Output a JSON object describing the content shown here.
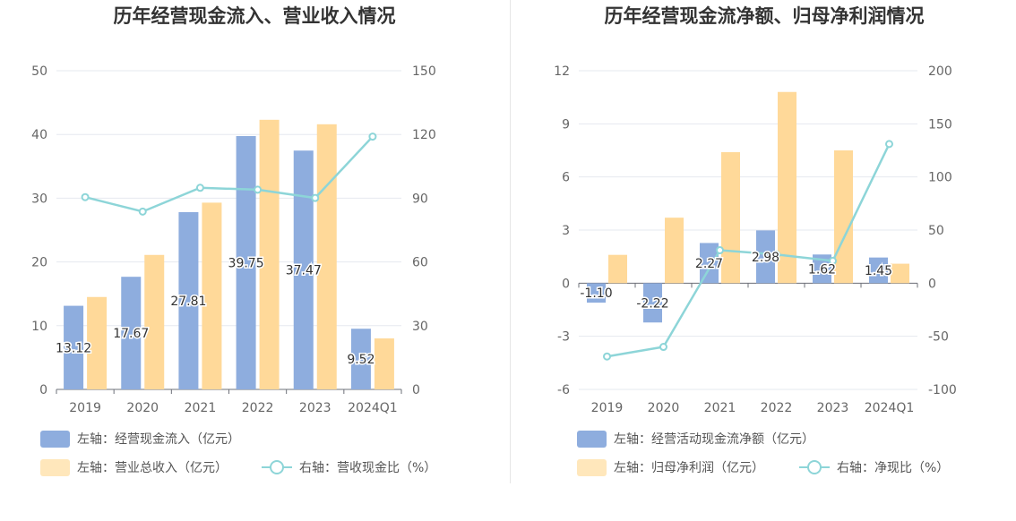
{
  "charts": [
    {
      "title": "历年经营现金流入、营业收入情况",
      "legend": {
        "bar1": "左轴：经营现金流入（亿元）",
        "bar2": "左轴：营业总收入（亿元）",
        "line": "右轴：营收现金比（%）"
      }
    },
    {
      "title": "历年经营现金流净额、归母净利润情况",
      "legend": {
        "bar1": "左轴：经营活动现金流净额（亿元）",
        "bar2": "左轴：归母净利润（亿元）",
        "line": "右轴：净现比（%）"
      }
    }
  ],
  "colors": {
    "bar1": "#8eadde",
    "bar2": "#ffd999",
    "line": "#8dd5d8",
    "grid": "#e6e8ef",
    "axis": "#6e7079"
  },
  "chart_data": [
    {
      "type": "bar",
      "title": "历年经营现金流入、营业收入情况",
      "categories": [
        "2019",
        "2020",
        "2021",
        "2022",
        "2023",
        "2024Q1"
      ],
      "y_left": {
        "min": 0,
        "max": 50,
        "ticks": [
          0,
          10,
          20,
          30,
          40,
          50
        ]
      },
      "y_right": {
        "min": 0,
        "max": 150,
        "ticks": [
          0,
          30,
          60,
          90,
          120,
          150
        ]
      },
      "series": [
        {
          "name": "左轴：经营现金流入（亿元）",
          "type": "bar",
          "axis": "left",
          "values": [
            13.12,
            17.67,
            27.81,
            39.75,
            37.47,
            9.52
          ],
          "labels": [
            "13.12",
            "17.67",
            "27.81",
            "39.75",
            "37.47",
            "9.52"
          ]
        },
        {
          "name": "左轴：营业总收入（亿元）",
          "type": "bar",
          "axis": "left",
          "values": [
            14.5,
            21.1,
            29.3,
            42.3,
            41.6,
            8.0
          ]
        },
        {
          "name": "右轴：营收现金比（%）",
          "type": "line",
          "axis": "right",
          "values": [
            90.5,
            83.7,
            94.9,
            94.0,
            90.1,
            119.0
          ]
        }
      ],
      "grid": true,
      "legend_position": "bottom"
    },
    {
      "type": "bar",
      "title": "历年经营现金流净额、归母净利润情况",
      "categories": [
        "2019",
        "2020",
        "2021",
        "2022",
        "2023",
        "2024Q1"
      ],
      "y_left": {
        "min": -6,
        "max": 12,
        "ticks": [
          -6,
          -3,
          0,
          3,
          6,
          9,
          12
        ]
      },
      "y_right": {
        "min": -100,
        "max": 200,
        "ticks": [
          -100,
          -50,
          0,
          50,
          100,
          150,
          200
        ]
      },
      "series": [
        {
          "name": "左轴：经营活动现金流净额（亿元）",
          "type": "bar",
          "axis": "left",
          "values": [
            -1.1,
            -2.22,
            2.27,
            2.98,
            1.62,
            1.45
          ],
          "labels": [
            "-1.10",
            "-2.22",
            "2.27",
            "2.98",
            "1.62",
            "1.45"
          ]
        },
        {
          "name": "左轴：归母净利润（亿元）",
          "type": "bar",
          "axis": "left",
          "values": [
            1.6,
            3.7,
            7.4,
            10.8,
            7.5,
            1.1
          ]
        },
        {
          "name": "右轴：净现比（%）",
          "type": "line",
          "axis": "right",
          "values": [
            -69,
            -60,
            31,
            27,
            21,
            131
          ]
        }
      ],
      "grid": true,
      "legend_position": "bottom"
    }
  ]
}
